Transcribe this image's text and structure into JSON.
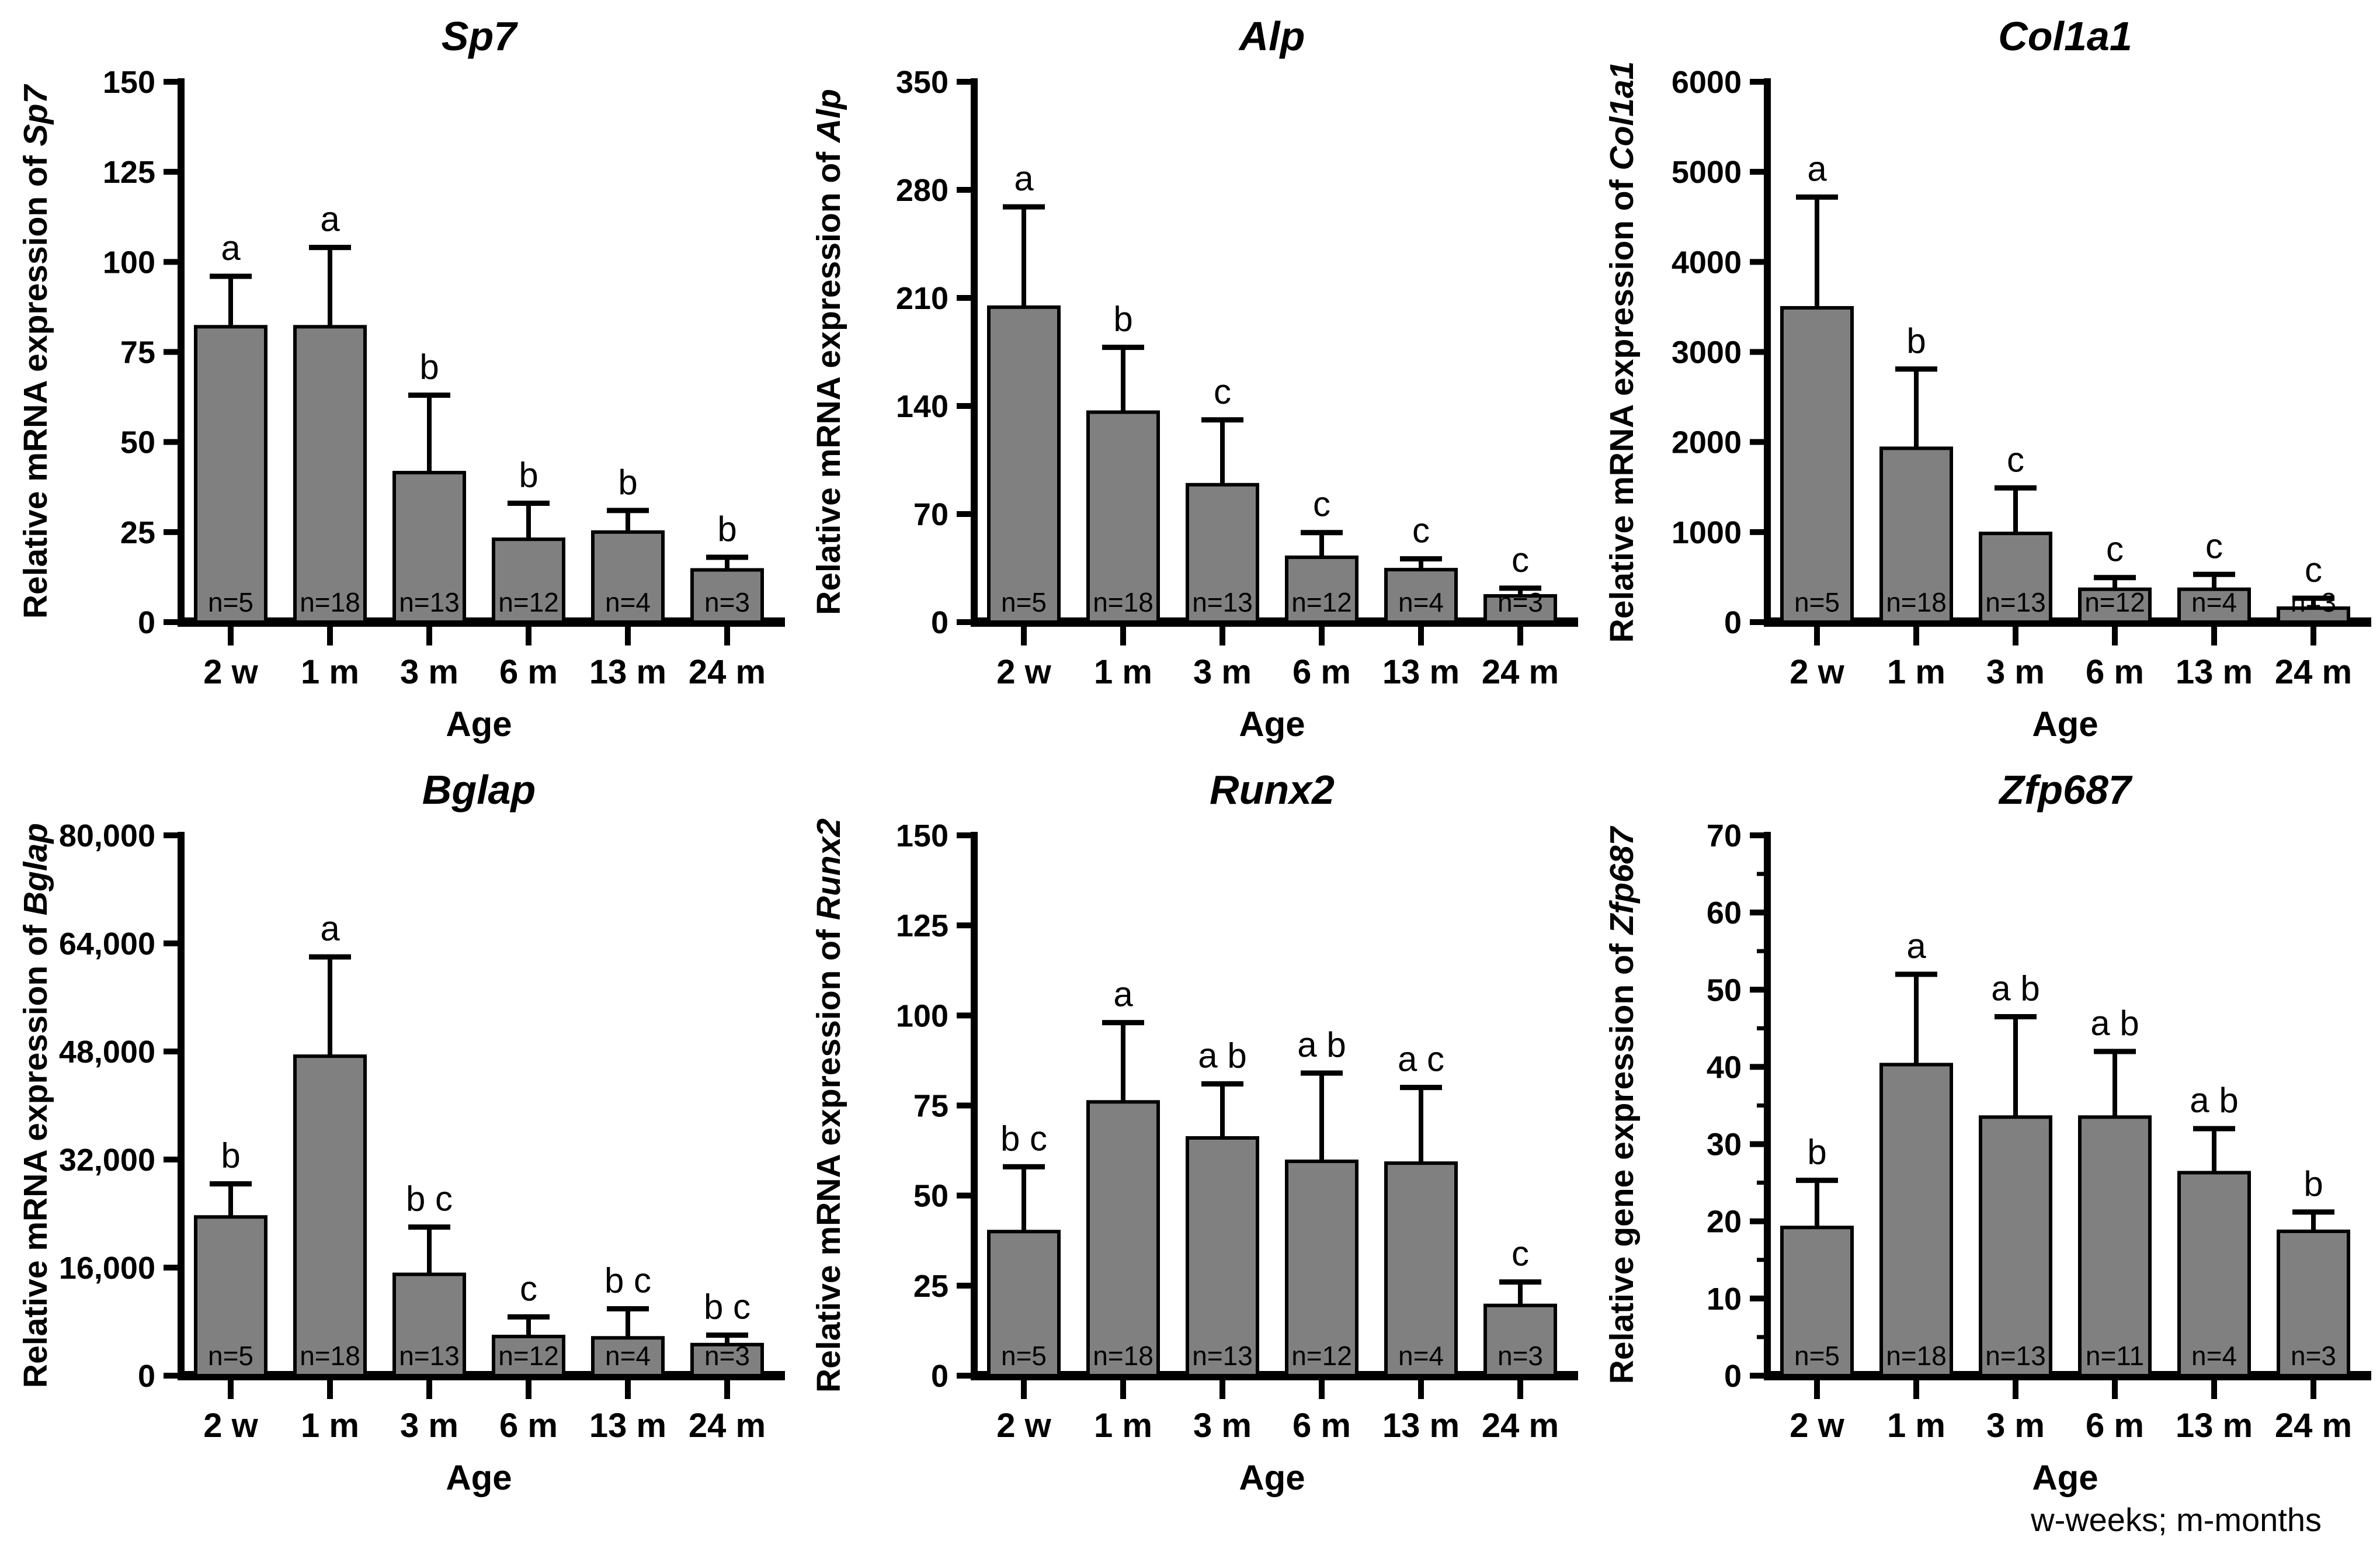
{
  "footer_note": "w-weeks; m-months",
  "style": {
    "background": "#ffffff",
    "bar_fill": "#808080",
    "bar_stroke": "#000000",
    "axis_color": "#000000",
    "text_color": "#000000"
  },
  "chart_data": [
    {
      "id": "sp7",
      "type": "bar",
      "title": "Sp7",
      "ylabel_prefix": "Relative mRNA expression of ",
      "ylabel_gene": "Sp7",
      "xlabel": "Age",
      "categories": [
        "2 w",
        "1 m",
        "3 m",
        "6 m",
        "13 m",
        "24 m"
      ],
      "values": [
        82,
        82,
        41.5,
        23,
        25,
        14.5
      ],
      "error_top": [
        96,
        104,
        63,
        33,
        31,
        18
      ],
      "sig_letters": [
        "a",
        "a",
        "b",
        "b",
        "b",
        "b"
      ],
      "n_labels": [
        "n=5",
        "n=18",
        "n=13",
        "n=12",
        "n=4",
        "n=3"
      ],
      "ylim": [
        0,
        150
      ],
      "ytick_values": [
        0,
        25,
        50,
        75,
        100,
        125,
        150
      ],
      "ytick_labels": [
        "0",
        "25",
        "50",
        "75",
        "100",
        "125",
        "150"
      ],
      "yminor_values": []
    },
    {
      "id": "alp",
      "type": "bar",
      "title": "Alp",
      "ylabel_prefix": "Relative mRNA expression of ",
      "ylabel_gene": "Alp",
      "xlabel": "Age",
      "categories": [
        "2 w",
        "1 m",
        "3 m",
        "6 m",
        "13 m",
        "24 m"
      ],
      "values": [
        204,
        136,
        89,
        42,
        34,
        17
      ],
      "error_top": [
        269,
        178,
        131,
        58,
        41,
        22
      ],
      "sig_letters": [
        "a",
        "b",
        "c",
        "c",
        "c",
        "c"
      ],
      "n_labels": [
        "n=5",
        "n=18",
        "n=13",
        "n=12",
        "n=4",
        "n=3"
      ],
      "ylim": [
        0,
        350
      ],
      "ytick_values": [
        0,
        70,
        140,
        210,
        280,
        350
      ],
      "ytick_labels": [
        "0",
        "70",
        "140",
        "210",
        "280",
        "350"
      ],
      "yminor_values": []
    },
    {
      "id": "col1a1",
      "type": "bar",
      "title": "Col1a1",
      "ylabel_prefix": "Relative mRNA expression of ",
      "ylabel_gene": "Col1a1",
      "xlabel": "Age",
      "categories": [
        "2 w",
        "1 m",
        "3 m",
        "6 m",
        "13 m",
        "24 m"
      ],
      "values": [
        3490,
        1930,
        985,
        365,
        365,
        155
      ],
      "error_top": [
        4720,
        2810,
        1490,
        495,
        530,
        265
      ],
      "sig_letters": [
        "a",
        "b",
        "c",
        "c",
        "c",
        "c"
      ],
      "n_labels": [
        "n=5",
        "n=18",
        "n=13",
        "n=12",
        "n=4",
        "n=3"
      ],
      "ylim": [
        0,
        6000
      ],
      "ytick_values": [
        0,
        1000,
        2000,
        3000,
        4000,
        5000,
        6000
      ],
      "ytick_labels": [
        "0",
        "1000",
        "2000",
        "3000",
        "4000",
        "5000",
        "6000"
      ],
      "yminor_values": []
    },
    {
      "id": "bglap",
      "type": "bar",
      "title": "Bglap",
      "ylabel_prefix": "Relative mRNA expression of ",
      "ylabel_gene": "Bglap",
      "xlabel": "Age",
      "categories": [
        "2 w",
        "1 m",
        "3 m",
        "6 m",
        "13 m",
        "24 m"
      ],
      "values": [
        23500,
        47300,
        15000,
        5800,
        5600,
        4600
      ],
      "error_top": [
        28400,
        62000,
        22000,
        8700,
        9900,
        6000
      ],
      "sig_letters": [
        "b",
        "a",
        "b c",
        "c",
        "b c",
        "b c"
      ],
      "n_labels": [
        "n=5",
        "n=18",
        "n=13",
        "n=12",
        "n=4",
        "n=3"
      ],
      "ylim": [
        0,
        80000
      ],
      "ytick_values": [
        0,
        16000,
        32000,
        48000,
        64000,
        80000
      ],
      "ytick_labels": [
        "0",
        "16,000",
        "32,000",
        "48,000",
        "64,000",
        "80,000"
      ],
      "yminor_values": []
    },
    {
      "id": "runx2",
      "type": "bar",
      "title": "Runx2",
      "ylabel_prefix": "Relative mRNA expression of ",
      "ylabel_gene": "Runx2",
      "xlabel": "Age",
      "categories": [
        "2 w",
        "1 m",
        "3 m",
        "6 m",
        "13 m",
        "24 m"
      ],
      "values": [
        40,
        76,
        66,
        59.5,
        59,
        19.5
      ],
      "error_top": [
        58,
        98,
        81,
        84,
        80,
        26
      ],
      "sig_letters": [
        "b c",
        "a",
        "a b",
        "a b",
        "a c",
        "c"
      ],
      "n_labels": [
        "n=5",
        "n=18",
        "n=13",
        "n=12",
        "n=4",
        "n=3"
      ],
      "ylim": [
        0,
        150
      ],
      "ytick_values": [
        0,
        25,
        50,
        75,
        100,
        125,
        150
      ],
      "ytick_labels": [
        "0",
        "25",
        "50",
        "75",
        "100",
        "125",
        "150"
      ],
      "yminor_values": []
    },
    {
      "id": "zfp687",
      "type": "bar",
      "title": "Zfp687",
      "ylabel_prefix": "Relative gene expression of ",
      "ylabel_gene": "Zfp687",
      "xlabel": "Age",
      "categories": [
        "2 w",
        "1 m",
        "3 m",
        "6 m",
        "13 m",
        "24 m"
      ],
      "values": [
        19.2,
        40.3,
        33.5,
        33.5,
        26.3,
        18.7
      ],
      "error_top": [
        25.3,
        52,
        46.5,
        42,
        32,
        21.2
      ],
      "sig_letters": [
        "b",
        "a",
        "a b",
        "a b",
        "a b",
        "b"
      ],
      "n_labels": [
        "n=5",
        "n=18",
        "n=13",
        "n=11",
        "n=4",
        "n=3"
      ],
      "ylim": [
        0,
        70
      ],
      "ytick_values": [
        0,
        10,
        20,
        30,
        40,
        50,
        60,
        70
      ],
      "ytick_labels": [
        "0",
        "10",
        "20",
        "30",
        "40",
        "50",
        "60",
        "70"
      ],
      "yminor_values": [
        5,
        15,
        25,
        35,
        45,
        55,
        65
      ]
    }
  ]
}
